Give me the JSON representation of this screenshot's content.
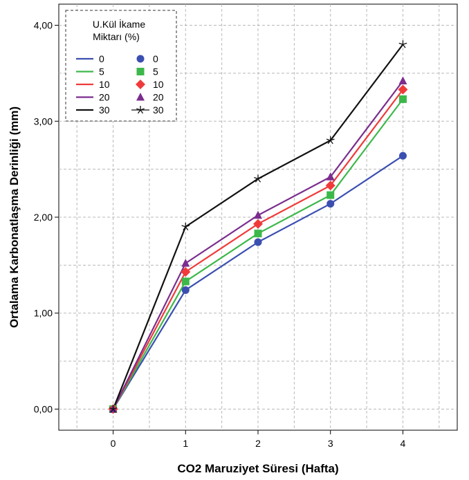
{
  "chart_data": {
    "type": "line",
    "title": "",
    "xlabel": "CO2 Maruziyet Süresi (Hafta)",
    "ylabel": "Ortalama Karbonatlaşma Derinliği (mm)",
    "x": [
      0,
      1,
      2,
      3,
      4
    ],
    "x_tick_labels": [
      "0",
      "1",
      "2",
      "3",
      "4"
    ],
    "xlim": [
      -0.75,
      4.75
    ],
    "ylim": [
      -0.22,
      4.22
    ],
    "y_ticks": [
      0,
      1,
      2,
      3,
      4
    ],
    "y_tick_labels": [
      "0,00",
      "1,00",
      "2,00",
      "3,00",
      "4,00"
    ],
    "grid": true,
    "legend": {
      "placement": "top-left",
      "title_line1": "U.Kül İkame",
      "title_line2": "Miktarı (%)"
    },
    "series": [
      {
        "name": "0",
        "values": [
          0,
          1.24,
          1.74,
          2.14,
          2.64
        ],
        "color": "#3b4fb0",
        "marker": "circle"
      },
      {
        "name": "5",
        "values": [
          0,
          1.33,
          1.83,
          2.23,
          3.23
        ],
        "color": "#3cb84a",
        "marker": "square"
      },
      {
        "name": "10",
        "values": [
          0,
          1.43,
          1.93,
          2.33,
          3.33
        ],
        "color": "#f03a3a",
        "marker": "diamond"
      },
      {
        "name": "20",
        "values": [
          0,
          1.52,
          2.02,
          2.42,
          3.42
        ],
        "color": "#7b2d8e",
        "marker": "triangle"
      },
      {
        "name": "30",
        "values": [
          0,
          1.9,
          2.4,
          2.8,
          3.8
        ],
        "color": "#111111",
        "marker": "star"
      }
    ]
  }
}
